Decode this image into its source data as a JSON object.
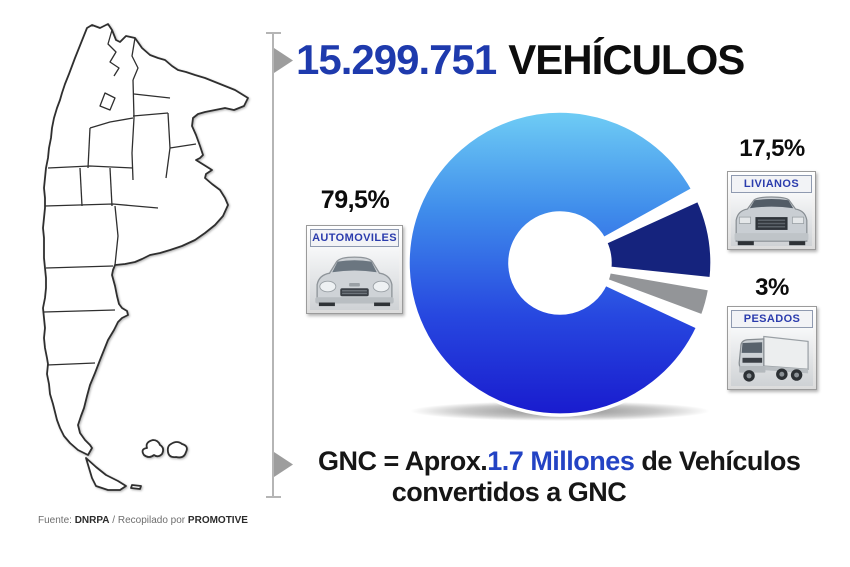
{
  "page": {
    "background": "#ffffff"
  },
  "header": {
    "number": "15.299.751",
    "word": "VEHÍCULOS"
  },
  "chart_data": {
    "type": "pie",
    "donut": true,
    "title": "15.299.751 VEHÍCULOS",
    "categories": [
      "AUTOMOVILES",
      "LIVIANOS",
      "PESADOS"
    ],
    "values": [
      79.5,
      17.5,
      3
    ],
    "unit": "%",
    "hole_ratio": 0.33,
    "legend_position": "callout-cards",
    "slices": [
      {
        "label": "AUTOMOVILES",
        "pct_label": "79,5%",
        "value": 79.5,
        "gradient": [
          "#6fcdf5",
          "#3f8ceb",
          "#2748e0",
          "#191bce"
        ],
        "arc": {
          "start": 29,
          "end": 335
        }
      },
      {
        "label": "LIVIANOS",
        "pct_label": "17,5%",
        "value": 17.5,
        "color": "#15237d",
        "arc": {
          "start": -6,
          "end": 24.5
        }
      },
      {
        "label": "PESADOS",
        "pct_label": "3%",
        "value": 3,
        "color": "#939598",
        "arc": {
          "start": -20.5,
          "end": -9.8
        }
      }
    ]
  },
  "gnc": {
    "part1": "GNC = Aprox.",
    "highlight": "1.7 Millones",
    "part2": " de Vehículos",
    "line2": "convertidos a GNC"
  },
  "footer": {
    "label": "Fuente: ",
    "source": "DNRPA",
    "middle": " / Recopilado por ",
    "brand": "PROMOTIVE"
  },
  "colors": {
    "title_blue": "#1e3aad",
    "gnc_blue": "#2343c4",
    "label_blue": "#2b3cad",
    "dark_slice": "#15237d",
    "gray_slice": "#939598",
    "divider_gray": "#b5b5b5",
    "arrow_gray": "#9d9d9d"
  }
}
